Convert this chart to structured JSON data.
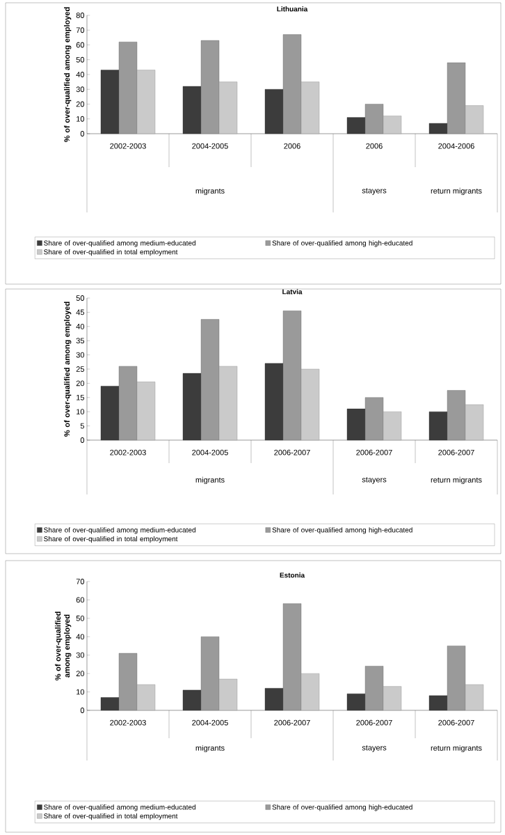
{
  "chart_data": [
    {
      "type": "bar",
      "title": "Lithuania",
      "ylabel": "% of over-qualified among employed",
      "categories": [
        "2002-2003",
        "2004-2005",
        "2006",
        "2006",
        "2004-2006"
      ],
      "ylim": [
        0,
        80
      ],
      "yticks": [
        0,
        10,
        20,
        30,
        40,
        50,
        60,
        70,
        80
      ],
      "legend": "bottom",
      "annotations": [
        "migrants",
        "stayers",
        "return migrants"
      ],
      "series": [
        {
          "name": "Share of over-qualified among medium-educated",
          "color": "#3c3c3c",
          "values": [
            43,
            32,
            30,
            11,
            7
          ]
        },
        {
          "name": "Share of over-qualified among high-educated",
          "color": "#9a9a9a",
          "values": [
            62,
            63,
            67,
            20,
            48
          ]
        },
        {
          "name": "Share of over-qualified in total employment",
          "color": "#cacaca",
          "values": [
            43,
            35,
            35,
            12,
            19
          ]
        }
      ]
    },
    {
      "type": "bar",
      "title": "Latvia",
      "ylabel": "% of over-qualified among employed",
      "categories": [
        "2002-2003",
        "2004-2005",
        "2006-2007",
        "2006-2007",
        "2006-2007"
      ],
      "ylim": [
        0,
        50
      ],
      "yticks": [
        0,
        5,
        10,
        15,
        20,
        25,
        30,
        35,
        40,
        45,
        50
      ],
      "legend": "bottom",
      "annotations": [
        "migrants",
        "stayers",
        "return migrants"
      ],
      "series": [
        {
          "name": "Share of over-qualified among medium-educated",
          "color": "#3c3c3c",
          "values": [
            19,
            23.5,
            27,
            11,
            10
          ]
        },
        {
          "name": "Share of over-qualified among high-educated",
          "color": "#9a9a9a",
          "values": [
            26,
            42.5,
            45.5,
            15,
            17.5
          ]
        },
        {
          "name": "Share of over-qualified in total employment",
          "color": "#cacaca",
          "values": [
            20.5,
            26,
            25,
            10,
            12.5
          ]
        }
      ]
    },
    {
      "type": "bar",
      "title": "Estonia",
      "ylabel": "% of over-qualified among employed",
      "categories": [
        "2002-2003",
        "2004-2005",
        "2006-2007",
        "2006-2007",
        "2006-2007"
      ],
      "ylim": [
        0,
        70
      ],
      "yticks": [
        0,
        10,
        20,
        30,
        40,
        50,
        60,
        70
      ],
      "legend": "bottom",
      "annotations": [
        "migrants",
        "stayers",
        "return migrants"
      ],
      "series": [
        {
          "name": "Share of over-qualified among medium-educated",
          "color": "#3c3c3c",
          "values": [
            7,
            11,
            12,
            9,
            8
          ]
        },
        {
          "name": "Share of over-qualified among high-educated",
          "color": "#9a9a9a",
          "values": [
            31,
            40,
            58,
            24,
            35
          ]
        },
        {
          "name": "Share of over-qualified in total employment",
          "color": "#cacaca",
          "values": [
            14,
            17,
            20,
            13,
            14
          ]
        }
      ]
    }
  ]
}
